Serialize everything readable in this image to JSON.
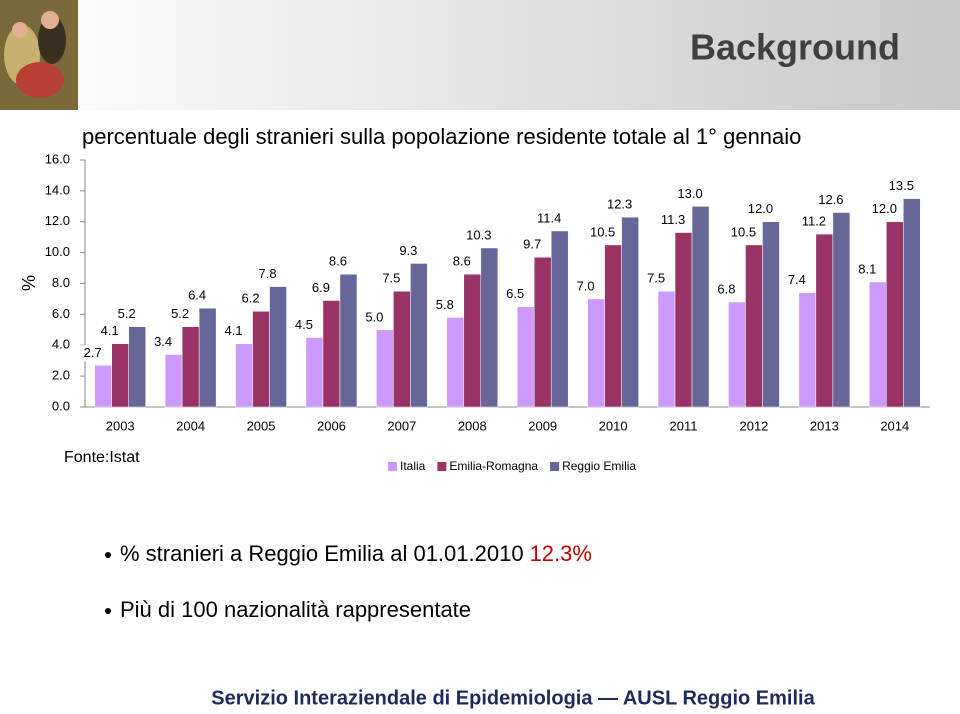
{
  "header": {
    "title": "Background"
  },
  "chart_data": {
    "type": "bar",
    "title": "percentuale degli stranieri sulla popolazione residente totale al 1° gennaio",
    "y_label": "%",
    "source": "Fonte:Istat",
    "categories": [
      "2003",
      "2004",
      "2005",
      "2006",
      "2007",
      "2008",
      "2009",
      "2010",
      "2011",
      "2012",
      "2013",
      "2014"
    ],
    "series": [
      {
        "name": "Italia",
        "color": "#cc99ff",
        "values": [
          2.7,
          3.4,
          4.1,
          4.5,
          5.0,
          5.8,
          6.5,
          7.0,
          7.5,
          6.8,
          7.4,
          8.1
        ],
        "value_labels": [
          "2.7",
          "3.4",
          "4.1",
          "4.5",
          "5.0",
          "5.8",
          "6.5",
          "7.0",
          "7.5",
          "6.8",
          "7.4",
          "8.1"
        ]
      },
      {
        "name": "Emilia-Romagna",
        "color": "#993366",
        "values": [
          4.1,
          5.2,
          6.2,
          6.9,
          7.5,
          8.6,
          9.7,
          10.5,
          11.3,
          10.5,
          11.2,
          12.0
        ],
        "value_labels": [
          "4.1",
          "5.2",
          "6.2",
          "6.9",
          "7.5",
          "8.6",
          "9.7",
          "10.5",
          "11.3",
          "10.5",
          "11.2",
          "12.0"
        ]
      },
      {
        "name": "Reggio Emilia",
        "color": "#666699",
        "values": [
          5.2,
          6.4,
          7.8,
          8.6,
          9.3,
          10.3,
          11.4,
          12.3,
          13.0,
          12.0,
          12.6,
          13.5
        ],
        "value_labels": [
          "5.2",
          "6.4",
          "7.8",
          "8.6",
          "9.3",
          "10.3",
          "11.4",
          "12.3",
          "13.0",
          "12.0",
          "12.6",
          "13.5"
        ]
      }
    ],
    "ylim": [
      0,
      16
    ],
    "yticks": [
      {
        "value": 0,
        "label": "0.0"
      },
      {
        "value": 2,
        "label": "2.0"
      },
      {
        "value": 4,
        "label": "4.0"
      },
      {
        "value": 6,
        "label": "6.0"
      },
      {
        "value": 8,
        "label": "8.0"
      },
      {
        "value": 10,
        "label": "10.0"
      },
      {
        "value": 12,
        "label": "12.0"
      },
      {
        "value": 14,
        "label": "14.0"
      },
      {
        "value": 16,
        "label": "16.0"
      }
    ],
    "grid": false
  },
  "bullets": [
    {
      "text": "% stranieri a Reggio Emilia al 01.01.2010",
      "highlight": "12.3%"
    },
    {
      "text": "Più di 100 nazionalità rappresentate"
    }
  ],
  "footer": "Servizio Interaziendale di Epidemiologia — AUSL Reggio Emilia"
}
